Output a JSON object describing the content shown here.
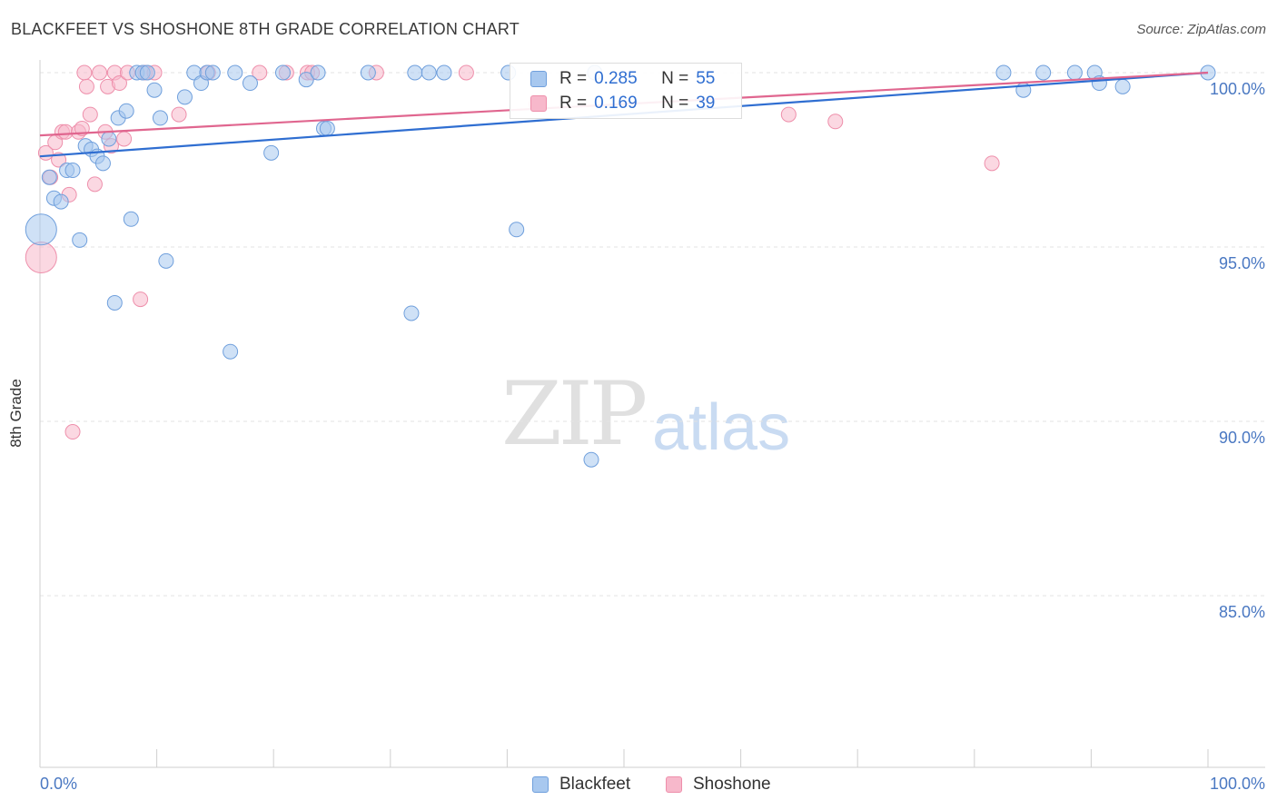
{
  "title": "BLACKFEET VS SHOSHONE 8TH GRADE CORRELATION CHART",
  "source": "Source: ZipAtlas.com",
  "watermark": {
    "part1": "ZIP",
    "part2": "atlas"
  },
  "stats": {
    "row1": {
      "r_label": "R = ",
      "r_value": "0.285",
      "n_label": "N = ",
      "n_value": "55"
    },
    "row2": {
      "r_label": "R = ",
      "r_value": "0.169",
      "n_label": "N = ",
      "n_value": "39"
    }
  },
  "colors": {
    "blackfeet_fill": "#a8c8ef",
    "blackfeet_stroke": "#6f9fdc",
    "blackfeet_line": "#2f6ed1",
    "shoshone_fill": "#f7b8cb",
    "shoshone_stroke": "#ee8fab",
    "shoshone_line": "#e0668f",
    "axis_text": "#4a78c2",
    "grid": "#e3e3e3"
  },
  "chart_data": {
    "type": "scatter",
    "ylabel": "8th Grade",
    "xlim": [
      0,
      100
    ],
    "ylim": [
      80.5,
      100.6
    ],
    "yticks": [
      {
        "value": 100,
        "label": "100.0%"
      },
      {
        "value": 95,
        "label": "95.0%"
      },
      {
        "value": 90,
        "label": "90.0%"
      },
      {
        "value": 85,
        "label": "85.0%"
      }
    ],
    "xtick_labels": {
      "left": "0.0%",
      "right": "100.0%"
    },
    "legend": [
      "Blackfeet",
      "Shoshone"
    ],
    "series": [
      {
        "name": "Blackfeet",
        "trend": {
          "x": [
            0,
            100
          ],
          "y": [
            97.6,
            100.0
          ]
        },
        "points": [
          {
            "x": 0.1,
            "y": 95.5,
            "big": true
          },
          {
            "x": 0.8,
            "y": 97.0
          },
          {
            "x": 1.2,
            "y": 96.4
          },
          {
            "x": 1.8,
            "y": 96.3
          },
          {
            "x": 2.3,
            "y": 97.2
          },
          {
            "x": 2.8,
            "y": 97.2
          },
          {
            "x": 3.4,
            "y": 95.2
          },
          {
            "x": 3.9,
            "y": 97.9
          },
          {
            "x": 4.4,
            "y": 97.8
          },
          {
            "x": 4.9,
            "y": 97.6
          },
          {
            "x": 5.4,
            "y": 97.4
          },
          {
            "x": 5.9,
            "y": 98.1
          },
          {
            "x": 6.4,
            "y": 93.4
          },
          {
            "x": 6.7,
            "y": 98.7
          },
          {
            "x": 7.4,
            "y": 98.9
          },
          {
            "x": 7.8,
            "y": 95.8
          },
          {
            "x": 8.3,
            "y": 100.0
          },
          {
            "x": 8.8,
            "y": 100.0
          },
          {
            "x": 9.2,
            "y": 100.0
          },
          {
            "x": 9.8,
            "y": 99.5
          },
          {
            "x": 10.3,
            "y": 98.7
          },
          {
            "x": 10.8,
            "y": 94.6
          },
          {
            "x": 12.4,
            "y": 99.3
          },
          {
            "x": 13.2,
            "y": 100.0
          },
          {
            "x": 13.8,
            "y": 99.7
          },
          {
            "x": 14.3,
            "y": 100.0
          },
          {
            "x": 14.8,
            "y": 100.0
          },
          {
            "x": 16.3,
            "y": 92.0
          },
          {
            "x": 16.7,
            "y": 100.0
          },
          {
            "x": 18.0,
            "y": 99.7
          },
          {
            "x": 19.8,
            "y": 97.7
          },
          {
            "x": 20.8,
            "y": 100.0
          },
          {
            "x": 22.8,
            "y": 99.8
          },
          {
            "x": 23.8,
            "y": 100.0
          },
          {
            "x": 24.3,
            "y": 98.4
          },
          {
            "x": 24.6,
            "y": 98.4
          },
          {
            "x": 28.1,
            "y": 100.0
          },
          {
            "x": 31.8,
            "y": 93.1
          },
          {
            "x": 32.1,
            "y": 100.0
          },
          {
            "x": 33.3,
            "y": 100.0
          },
          {
            "x": 34.6,
            "y": 100.0
          },
          {
            "x": 40.1,
            "y": 100.0
          },
          {
            "x": 40.8,
            "y": 95.5
          },
          {
            "x": 47.2,
            "y": 88.9
          },
          {
            "x": 47.5,
            "y": 100.0
          },
          {
            "x": 82.5,
            "y": 100.0
          },
          {
            "x": 84.2,
            "y": 99.5
          },
          {
            "x": 85.9,
            "y": 100.0
          },
          {
            "x": 88.6,
            "y": 100.0
          },
          {
            "x": 90.3,
            "y": 100.0
          },
          {
            "x": 90.7,
            "y": 99.7
          },
          {
            "x": 92.7,
            "y": 99.6
          },
          {
            "x": 100.0,
            "y": 100.0
          }
        ]
      },
      {
        "name": "Shoshone",
        "trend": {
          "x": [
            0,
            100
          ],
          "y": [
            98.2,
            100.0
          ]
        },
        "points": [
          {
            "x": 0.1,
            "y": 94.7,
            "big": true
          },
          {
            "x": 0.5,
            "y": 97.7
          },
          {
            "x": 0.9,
            "y": 97.0
          },
          {
            "x": 1.3,
            "y": 98.0
          },
          {
            "x": 1.6,
            "y": 97.5
          },
          {
            "x": 1.9,
            "y": 98.3
          },
          {
            "x": 2.2,
            "y": 98.3
          },
          {
            "x": 2.5,
            "y": 96.5
          },
          {
            "x": 2.8,
            "y": 89.7
          },
          {
            "x": 3.3,
            "y": 98.3
          },
          {
            "x": 3.6,
            "y": 98.4
          },
          {
            "x": 3.8,
            "y": 100.0
          },
          {
            "x": 4.0,
            "y": 99.6
          },
          {
            "x": 4.3,
            "y": 98.8
          },
          {
            "x": 4.7,
            "y": 96.8
          },
          {
            "x": 5.1,
            "y": 100.0
          },
          {
            "x": 5.6,
            "y": 98.3
          },
          {
            "x": 5.8,
            "y": 99.6
          },
          {
            "x": 6.1,
            "y": 97.9
          },
          {
            "x": 6.4,
            "y": 100.0
          },
          {
            "x": 6.8,
            "y": 99.7
          },
          {
            "x": 7.2,
            "y": 98.1
          },
          {
            "x": 7.5,
            "y": 100.0
          },
          {
            "x": 8.6,
            "y": 93.5
          },
          {
            "x": 9.0,
            "y": 100.0
          },
          {
            "x": 9.8,
            "y": 100.0
          },
          {
            "x": 11.9,
            "y": 98.8
          },
          {
            "x": 14.4,
            "y": 100.0
          },
          {
            "x": 18.8,
            "y": 100.0
          },
          {
            "x": 21.1,
            "y": 100.0
          },
          {
            "x": 22.9,
            "y": 100.0
          },
          {
            "x": 23.3,
            "y": 100.0
          },
          {
            "x": 28.8,
            "y": 100.0
          },
          {
            "x": 36.5,
            "y": 100.0
          },
          {
            "x": 42.5,
            "y": 99.1
          },
          {
            "x": 64.1,
            "y": 98.8
          },
          {
            "x": 68.1,
            "y": 98.6
          },
          {
            "x": 81.5,
            "y": 97.4
          }
        ]
      }
    ]
  }
}
